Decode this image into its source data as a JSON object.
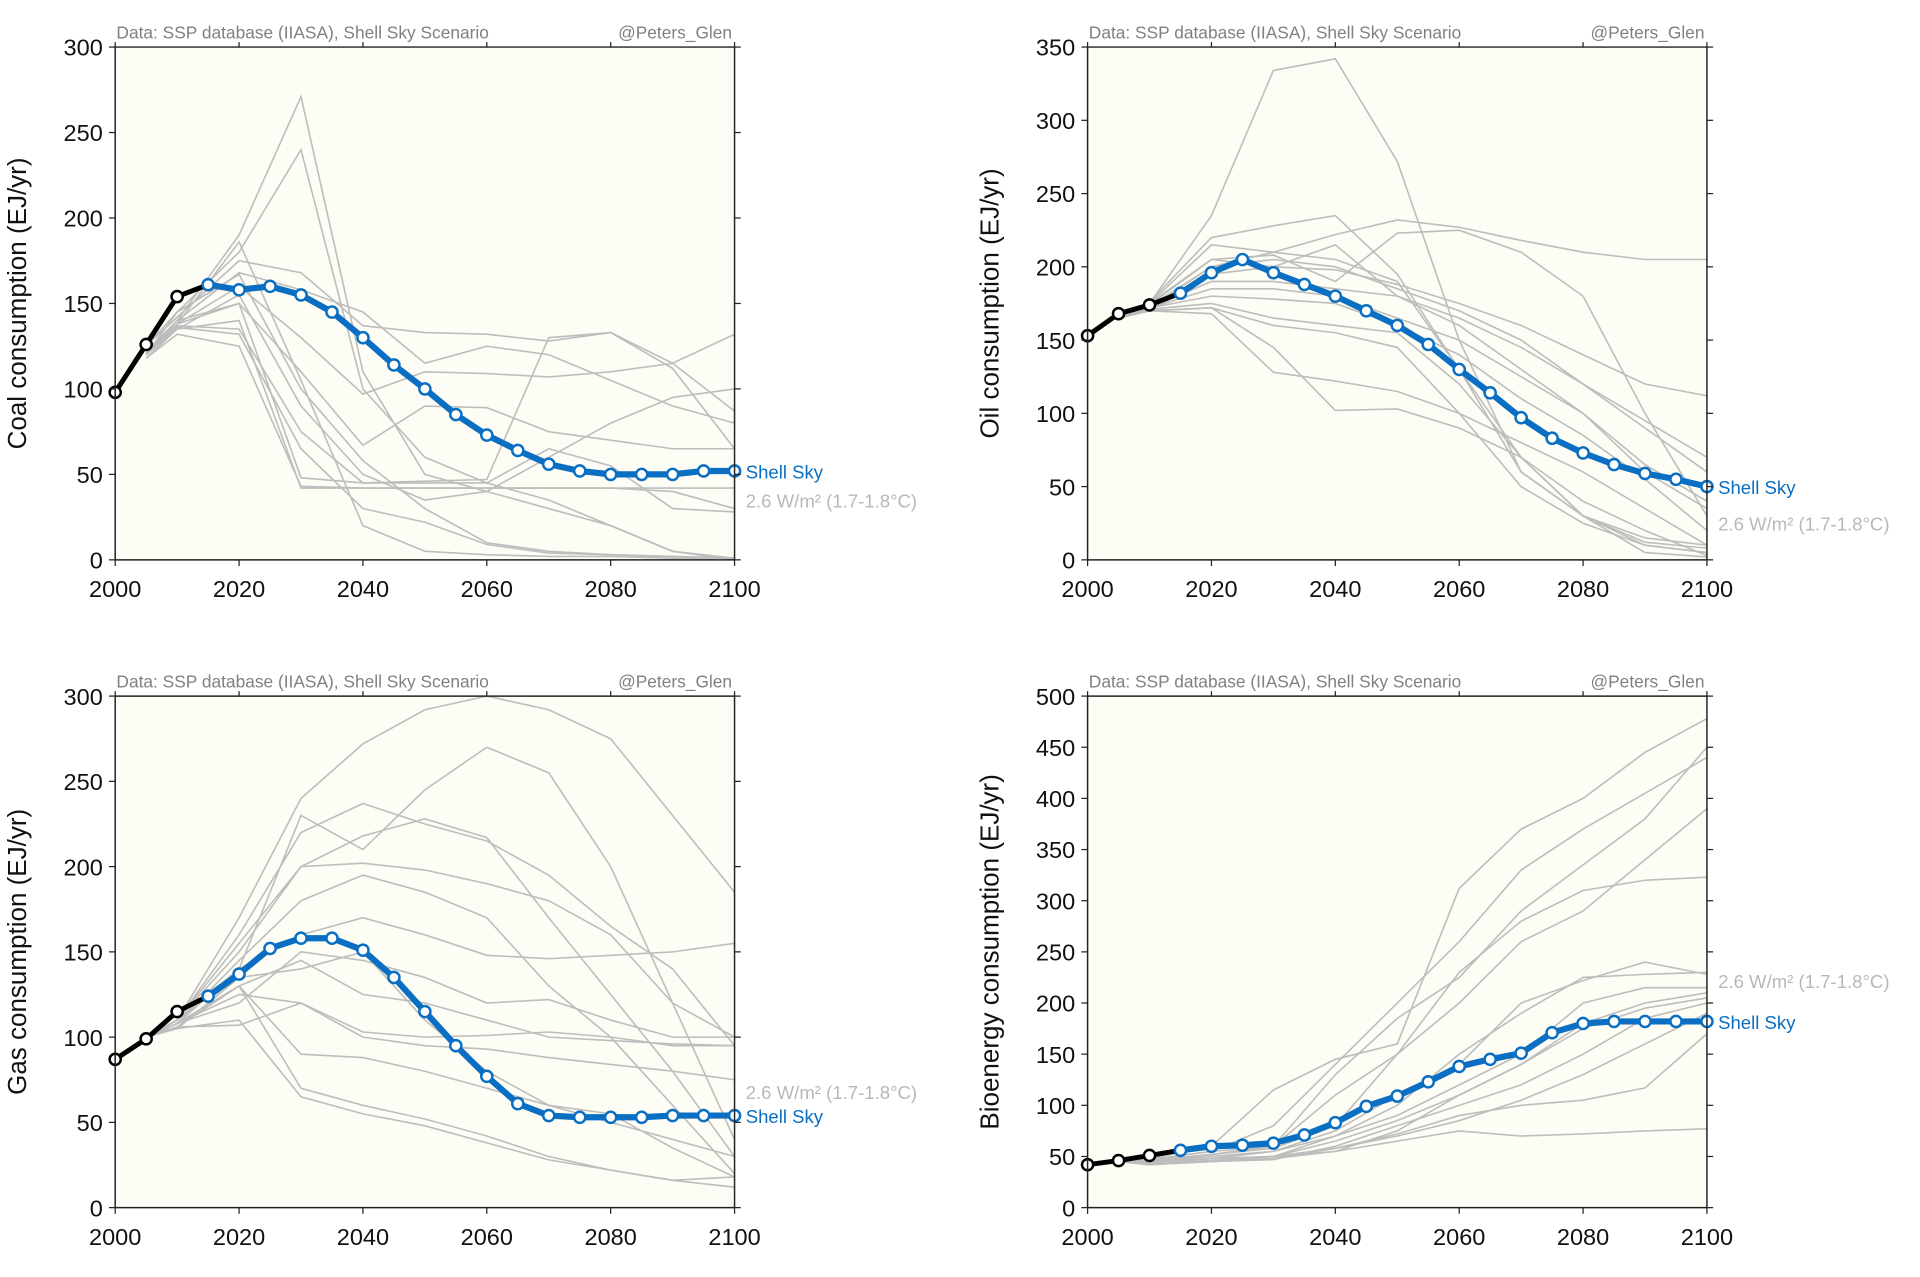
{
  "colors": {
    "scenario": "#bdbdbd",
    "historical": "#000000",
    "shell": "#0a6fc2",
    "background": "#fdfdf6"
  },
  "chart_data": [
    {
      "type": "line",
      "title": "",
      "source": "Data: SSP database (IIASA), Shell Sky Scenario",
      "credit": "@Peters_Glen",
      "ylabel": "Coal consumption (EJ/yr)",
      "xlabel": "",
      "xlim": [
        2000,
        2100
      ],
      "ylim": [
        0,
        300
      ],
      "xticks": [
        "2000",
        "2020",
        "2040",
        "2060",
        "2080",
        "2100"
      ],
      "yticks": [
        "0",
        "50",
        "100",
        "150",
        "200",
        "250",
        "300"
      ],
      "shell_label": "Shell Sky",
      "scenario_label": "2.6 W/m² (1.7-1.8°C)",
      "historical": {
        "x": [
          2000,
          2005,
          2010,
          2015
        ],
        "y": [
          98,
          126,
          154,
          161
        ]
      },
      "shell_sky": {
        "x": [
          2015,
          2020,
          2025,
          2030,
          2035,
          2040,
          2045,
          2050,
          2055,
          2060,
          2065,
          2070,
          2075,
          2080,
          2085,
          2090,
          2095,
          2100
        ],
        "y": [
          161,
          158,
          160,
          155,
          145,
          130,
          114,
          100,
          85,
          73,
          64,
          56,
          52,
          50,
          50,
          50,
          52,
          52
        ]
      },
      "scenario_x": [
        2005,
        2010,
        2020,
        2030,
        2040,
        2050,
        2060,
        2070,
        2080,
        2090,
        2100
      ],
      "scenarios": [
        [
          120,
          140,
          190,
          271,
          110,
          50,
          40,
          30,
          20,
          5,
          0
        ],
        [
          120,
          145,
          180,
          240,
          100,
          60,
          45,
          35,
          20,
          5,
          1
        ],
        [
          125,
          142,
          175,
          168,
          137,
          133,
          132,
          128,
          133,
          115,
          132
        ],
        [
          122,
          140,
          168,
          158,
          145,
          115,
          125,
          120,
          105,
          90,
          80
        ],
        [
          120,
          138,
          186,
          105,
          20,
          5,
          3,
          2,
          2,
          1,
          1
        ],
        [
          118,
          135,
          155,
          90,
          50,
          35,
          40,
          60,
          80,
          95,
          100
        ],
        [
          120,
          138,
          160,
          130,
          97,
          110,
          109,
          107,
          110,
          115,
          87
        ],
        [
          122,
          138,
          150,
          48,
          45,
          46,
          47,
          130,
          133,
          112,
          65
        ],
        [
          120,
          135,
          140,
          42,
          42,
          42,
          42,
          42,
          42,
          42,
          42
        ],
        [
          118,
          132,
          125,
          43,
          42,
          42,
          42,
          42,
          42,
          40,
          30
        ],
        [
          120,
          137,
          135,
          75,
          45,
          45,
          45,
          65,
          55,
          30,
          28
        ],
        [
          125,
          145,
          167,
          100,
          58,
          30,
          10,
          5,
          3,
          2,
          1
        ],
        [
          121,
          140,
          150,
          110,
          67,
          90,
          89,
          75,
          70,
          65,
          65
        ],
        [
          120,
          136,
          132,
          65,
          30,
          22,
          9,
          4,
          3,
          2,
          1
        ]
      ]
    },
    {
      "type": "line",
      "title": "",
      "source": "Data: SSP database (IIASA), Shell Sky Scenario",
      "credit": "@Peters_Glen",
      "ylabel": "Oil consumption (EJ/yr)",
      "xlabel": "",
      "xlim": [
        2000,
        2100
      ],
      "ylim": [
        0,
        350
      ],
      "xticks": [
        "2000",
        "2020",
        "2040",
        "2060",
        "2080",
        "2100"
      ],
      "yticks": [
        "0",
        "50",
        "100",
        "150",
        "200",
        "250",
        "300",
        "350"
      ],
      "shell_label": "Shell Sky",
      "scenario_label": "2.6 W/m² (1.7-1.8°C)",
      "historical": {
        "x": [
          2000,
          2005,
          2010,
          2015
        ],
        "y": [
          153,
          168,
          174,
          182
        ]
      },
      "shell_sky": {
        "x": [
          2015,
          2020,
          2025,
          2030,
          2035,
          2040,
          2045,
          2050,
          2055,
          2060,
          2065,
          2070,
          2075,
          2080,
          2085,
          2090,
          2095,
          2100
        ],
        "y": [
          182,
          196,
          205,
          196,
          188,
          180,
          170,
          160,
          147,
          130,
          114,
          97,
          83,
          73,
          65,
          59,
          55,
          50
        ]
      },
      "scenario_x": [
        2005,
        2010,
        2020,
        2030,
        2040,
        2050,
        2060,
        2070,
        2080,
        2090,
        2100
      ],
      "scenarios": [
        [
          165,
          175,
          235,
          334,
          342,
          272,
          150,
          60,
          30,
          10,
          5
        ],
        [
          165,
          176,
          220,
          228,
          235,
          195,
          130,
          70,
          30,
          12,
          8
        ],
        [
          165,
          175,
          215,
          210,
          222,
          232,
          227,
          218,
          210,
          205,
          205
        ],
        [
          165,
          175,
          205,
          208,
          190,
          223,
          225,
          210,
          180,
          100,
          30
        ],
        [
          165,
          174,
          205,
          200,
          215,
          180,
          160,
          130,
          100,
          65,
          40
        ],
        [
          165,
          173,
          200,
          205,
          200,
          185,
          170,
          150,
          120,
          90,
          60
        ],
        [
          165,
          172,
          195,
          200,
          198,
          188,
          175,
          160,
          140,
          120,
          112
        ],
        [
          165,
          172,
          190,
          190,
          185,
          180,
          165,
          145,
          120,
          95,
          70
        ],
        [
          165,
          172,
          185,
          185,
          180,
          165,
          150,
          125,
          100,
          60,
          35
        ],
        [
          165,
          172,
          180,
          178,
          175,
          160,
          140,
          110,
          85,
          55,
          20
        ],
        [
          165,
          171,
          175,
          165,
          160,
          155,
          120,
          70,
          30,
          15,
          10
        ],
        [
          165,
          170,
          172,
          160,
          155,
          145,
          100,
          50,
          25,
          10,
          5
        ],
        [
          165,
          170,
          172,
          145,
          102,
          103,
          90,
          70,
          40,
          20,
          3
        ],
        [
          165,
          170,
          168,
          128,
          122,
          115,
          100,
          80,
          60,
          35,
          10
        ],
        [
          165,
          172,
          200,
          210,
          205,
          190,
          130,
          60,
          30,
          5,
          2
        ]
      ]
    },
    {
      "type": "line",
      "title": "",
      "source": "Data: SSP database (IIASA), Shell Sky Scenario",
      "credit": "@Peters_Glen",
      "ylabel": "Gas consumption (EJ/yr)",
      "xlabel": "",
      "xlim": [
        2000,
        2100
      ],
      "ylim": [
        0,
        300
      ],
      "xticks": [
        "2000",
        "2020",
        "2040",
        "2060",
        "2080",
        "2100"
      ],
      "yticks": [
        "0",
        "50",
        "100",
        "150",
        "200",
        "250",
        "300"
      ],
      "shell_label": "Shell Sky",
      "scenario_label": "2.6 W/m² (1.7-1.8°C)",
      "historical": {
        "x": [
          2000,
          2005,
          2010,
          2015
        ],
        "y": [
          87,
          99,
          115,
          124
        ]
      },
      "shell_sky": {
        "x": [
          2015,
          2020,
          2025,
          2030,
          2035,
          2040,
          2045,
          2050,
          2055,
          2060,
          2065,
          2070,
          2075,
          2080,
          2085,
          2090,
          2095,
          2100
        ],
        "y": [
          124,
          137,
          152,
          158,
          158,
          151,
          135,
          115,
          95,
          77,
          61,
          54,
          53,
          53,
          53,
          54,
          54,
          54
        ]
      },
      "scenario_x": [
        2005,
        2010,
        2020,
        2030,
        2040,
        2050,
        2060,
        2070,
        2080,
        2090,
        2100
      ],
      "scenarios": [
        [
          100,
          110,
          170,
          240,
          272,
          292,
          300,
          292,
          275,
          230,
          185
        ],
        [
          100,
          110,
          140,
          230,
          210,
          245,
          270,
          255,
          200,
          120,
          40
        ],
        [
          100,
          110,
          160,
          220,
          237,
          225,
          215,
          195,
          165,
          140,
          95
        ],
        [
          100,
          110,
          150,
          200,
          202,
          198,
          190,
          180,
          160,
          120,
          100
        ],
        [
          100,
          110,
          155,
          200,
          218,
          228,
          217,
          170,
          125,
          80,
          30
        ],
        [
          100,
          108,
          145,
          180,
          195,
          185,
          170,
          130,
          100,
          60,
          20
        ],
        [
          100,
          108,
          140,
          160,
          170,
          160,
          148,
          146,
          148,
          150,
          155
        ],
        [
          100,
          108,
          120,
          150,
          145,
          135,
          120,
          122,
          110,
          100,
          100
        ],
        [
          100,
          108,
          130,
          145,
          125,
          120,
          110,
          100,
          98,
          96,
          95
        ],
        [
          100,
          108,
          125,
          120,
          100,
          95,
          93,
          88,
          84,
          80,
          75
        ],
        [
          100,
          108,
          130,
          90,
          88,
          80,
          70,
          60,
          50,
          40,
          30
        ],
        [
          100,
          106,
          130,
          70,
          60,
          52,
          42,
          30,
          22,
          16,
          12
        ],
        [
          100,
          106,
          107,
          120,
          103,
          100,
          101,
          103,
          100,
          95,
          95
        ],
        [
          100,
          105,
          110,
          65,
          55,
          48,
          38,
          28,
          22,
          16,
          18
        ],
        [
          100,
          105,
          135,
          140,
          150,
          110,
          80,
          60,
          55,
          35,
          18
        ]
      ]
    },
    {
      "type": "line",
      "title": "",
      "source": "Data: SSP database (IIASA), Shell Sky Scenario",
      "credit": "@Peters_Glen",
      "ylabel": "Bioenergy consumption (EJ/yr)",
      "xlabel": "",
      "xlim": [
        2000,
        2100
      ],
      "ylim": [
        0,
        500
      ],
      "xticks": [
        "2000",
        "2020",
        "2040",
        "2060",
        "2080",
        "2100"
      ],
      "yticks": [
        "0",
        "50",
        "100",
        "150",
        "200",
        "250",
        "300",
        "350",
        "400",
        "450",
        "500"
      ],
      "shell_label": "Shell Sky",
      "scenario_label": "2.6 W/m² (1.7-1.8°C)",
      "historical": {
        "x": [
          2000,
          2005,
          2010,
          2015
        ],
        "y": [
          42,
          46,
          51,
          56
        ]
      },
      "shell_sky": {
        "x": [
          2015,
          2020,
          2025,
          2030,
          2035,
          2040,
          2045,
          2050,
          2055,
          2060,
          2065,
          2070,
          2075,
          2080,
          2085,
          2090,
          2095,
          2100
        ],
        "y": [
          56,
          60,
          61,
          63,
          71,
          83,
          99,
          109,
          123,
          138,
          145,
          151,
          171,
          180,
          182,
          182,
          182,
          182
        ]
      },
      "scenario_x": [
        2005,
        2010,
        2020,
        2030,
        2040,
        2050,
        2060,
        2070,
        2080,
        2090,
        2100
      ],
      "scenarios": [
        [
          45,
          48,
          60,
          115,
          145,
          160,
          312,
          370,
          400,
          445,
          478
        ],
        [
          45,
          47,
          55,
          80,
          140,
          200,
          260,
          330,
          370,
          405,
          440
        ],
        [
          45,
          47,
          55,
          60,
          130,
          185,
          225,
          290,
          335,
          380,
          450
        ],
        [
          45,
          46,
          52,
          60,
          110,
          150,
          200,
          260,
          290,
          340,
          390
        ],
        [
          45,
          46,
          52,
          58,
          80,
          150,
          230,
          280,
          310,
          320,
          323
        ],
        [
          45,
          45,
          50,
          55,
          75,
          110,
          140,
          200,
          222,
          240,
          228
        ],
        [
          45,
          45,
          48,
          55,
          70,
          100,
          150,
          190,
          225,
          228,
          230
        ],
        [
          45,
          45,
          48,
          50,
          70,
          90,
          120,
          150,
          200,
          215,
          215
        ],
        [
          45,
          44,
          48,
          50,
          65,
          85,
          110,
          140,
          180,
          200,
          210
        ],
        [
          45,
          44,
          45,
          47,
          60,
          80,
          100,
          120,
          150,
          185,
          200
        ],
        [
          45,
          42,
          45,
          48,
          58,
          72,
          90,
          100,
          105,
          117,
          170
        ],
        [
          45,
          42,
          45,
          48,
          55,
          65,
          75,
          70,
          72,
          75,
          77
        ],
        [
          45,
          43,
          45,
          50,
          55,
          75,
          110,
          140,
          175,
          195,
          205
        ],
        [
          45,
          44,
          46,
          50,
          58,
          70,
          85,
          105,
          130,
          160,
          190
        ]
      ]
    }
  ]
}
